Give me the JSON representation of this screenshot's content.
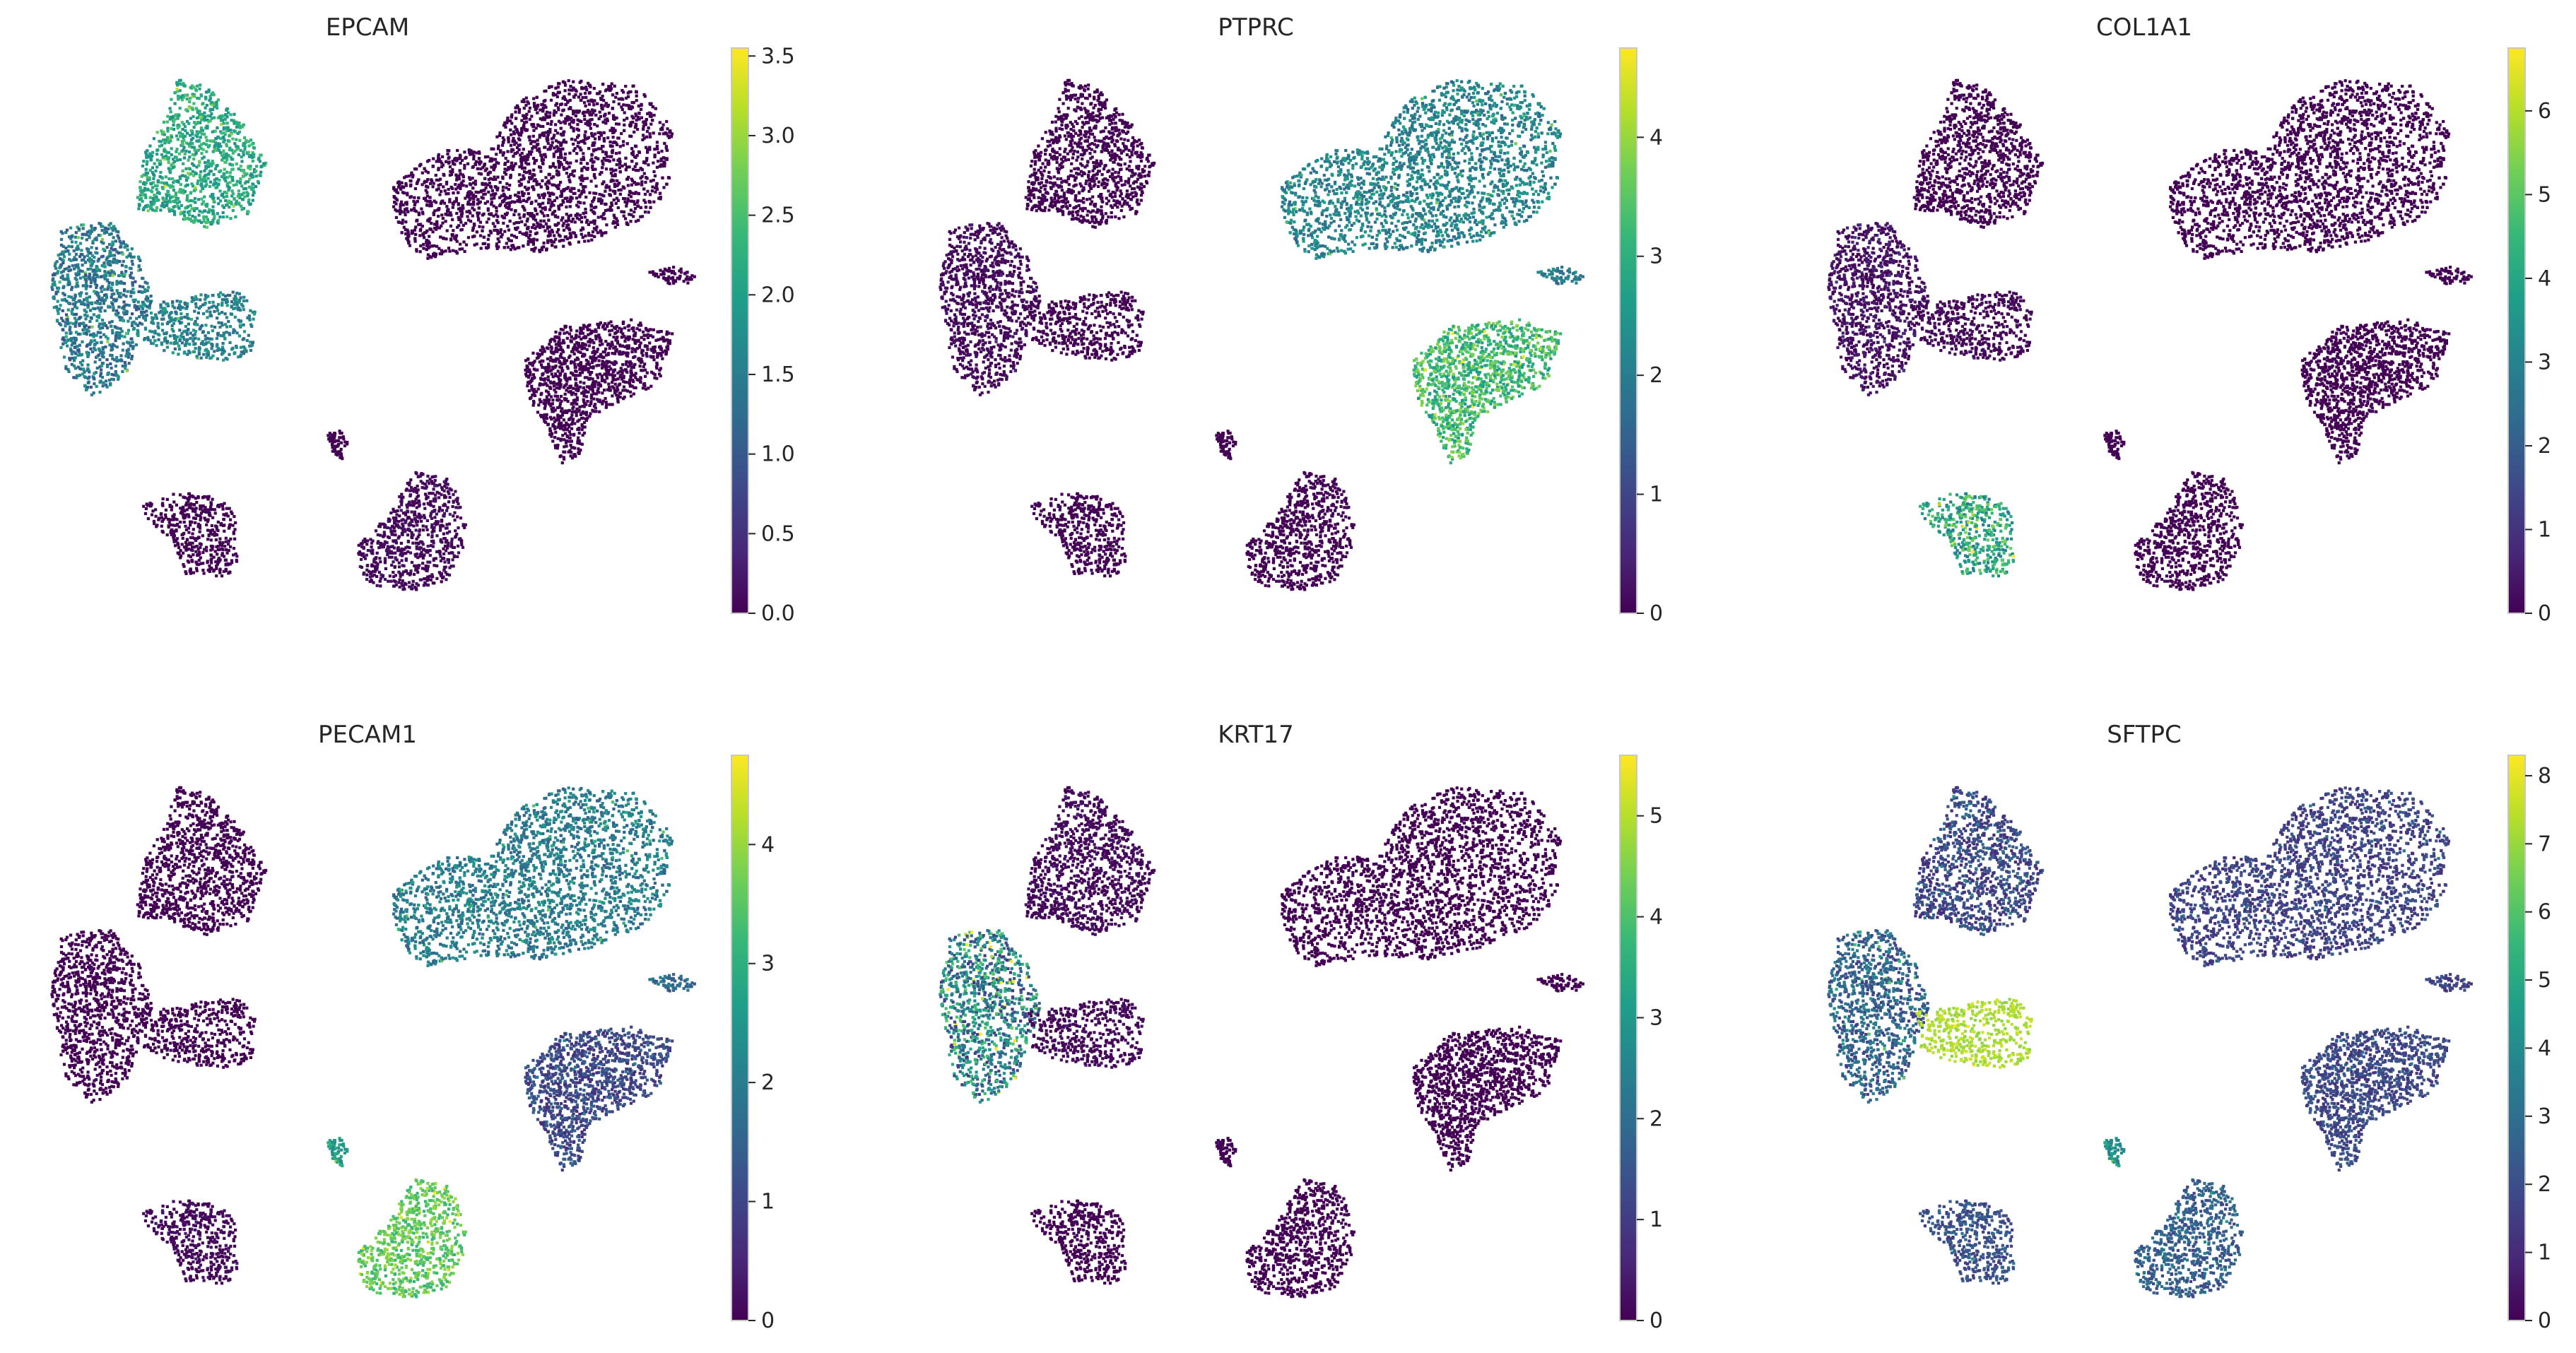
{
  "figure": {
    "type": "umap-feature-plot-grid"
  },
  "colormap": {
    "name": "viridis",
    "stops": [
      "#440154",
      "#482878",
      "#3e4989",
      "#31688e",
      "#26828e",
      "#1f9e89",
      "#35b779",
      "#6ece58",
      "#b5de2b",
      "#fde725"
    ]
  },
  "islands": [
    {
      "id": "upper-left-wedge"
    },
    {
      "id": "left-arm"
    },
    {
      "id": "left-tail"
    },
    {
      "id": "upper-right-large"
    },
    {
      "id": "right-protrusion"
    },
    {
      "id": "mid-right"
    },
    {
      "id": "tiny-left"
    },
    {
      "id": "lower-left-small"
    },
    {
      "id": "lower-center"
    }
  ],
  "chart_data": [
    {
      "type": "scatter",
      "title": "EPCAM",
      "xlabel": "",
      "ylabel": "",
      "colorbar": {
        "min": 0.0,
        "max": 3.55,
        "ticks": [
          "0.0",
          "0.5",
          "1.0",
          "1.5",
          "2.0",
          "2.5",
          "3.0",
          "3.5"
        ],
        "tick_values": [
          0,
          0.5,
          1,
          1.5,
          2,
          2.5,
          3,
          3.5
        ]
      },
      "island_levels": [
        0.6,
        0.4,
        0.45,
        0.0,
        0.0,
        0.0,
        0.0,
        0.0,
        0.02
      ],
      "island_spread": [
        0.12,
        0.15,
        0.12,
        0.01,
        0.01,
        0.01,
        0.01,
        0.01,
        0.03
      ]
    },
    {
      "type": "scatter",
      "title": "PTPRC",
      "xlabel": "",
      "ylabel": "",
      "colorbar": {
        "min": 0,
        "max": 4.75,
        "ticks": [
          "0",
          "1",
          "2",
          "3",
          "4"
        ],
        "tick_values": [
          0,
          1,
          2,
          3,
          4
        ]
      },
      "island_levels": [
        0.0,
        0.02,
        0.0,
        0.45,
        0.42,
        0.68,
        0.0,
        0.0,
        0.0
      ],
      "island_spread": [
        0.01,
        0.03,
        0.01,
        0.12,
        0.1,
        0.15,
        0.01,
        0.01,
        0.01
      ]
    },
    {
      "type": "scatter",
      "title": "COL1A1",
      "xlabel": "",
      "ylabel": "",
      "colorbar": {
        "min": 0,
        "max": 6.75,
        "ticks": [
          "0",
          "1",
          "2",
          "3",
          "4",
          "5",
          "6"
        ],
        "tick_values": [
          0,
          1,
          2,
          3,
          4,
          5,
          6
        ]
      },
      "island_levels": [
        0.0,
        0.04,
        0.02,
        0.0,
        0.0,
        0.0,
        0.0,
        0.6,
        0.0
      ],
      "island_spread": [
        0.01,
        0.05,
        0.03,
        0.01,
        0.01,
        0.01,
        0.01,
        0.2,
        0.01
      ]
    },
    {
      "type": "scatter",
      "title": "PECAM1",
      "xlabel": "",
      "ylabel": "",
      "colorbar": {
        "min": 0,
        "max": 4.75,
        "ticks": [
          "0",
          "1",
          "2",
          "3",
          "4"
        ],
        "tick_values": [
          0,
          1,
          2,
          3,
          4
        ]
      },
      "island_levels": [
        0.0,
        0.0,
        0.0,
        0.42,
        0.35,
        0.22,
        0.55,
        0.02,
        0.75
      ],
      "island_spread": [
        0.01,
        0.01,
        0.01,
        0.12,
        0.1,
        0.1,
        0.1,
        0.03,
        0.1
      ]
    },
    {
      "type": "scatter",
      "title": "KRT17",
      "xlabel": "",
      "ylabel": "",
      "colorbar": {
        "min": 0,
        "max": 5.6,
        "ticks": [
          "0",
          "1",
          "2",
          "3",
          "4",
          "5"
        ],
        "tick_values": [
          0,
          1,
          2,
          3,
          4,
          5
        ]
      },
      "island_levels": [
        0.02,
        0.45,
        0.02,
        0.0,
        0.0,
        0.0,
        0.0,
        0.0,
        0.0
      ],
      "island_spread": [
        0.03,
        0.3,
        0.03,
        0.01,
        0.01,
        0.01,
        0.01,
        0.01,
        0.01
      ]
    },
    {
      "type": "scatter",
      "title": "SFTPC",
      "xlabel": "",
      "ylabel": "",
      "colorbar": {
        "min": 0,
        "max": 8.3,
        "ticks": [
          "0",
          "1",
          "2",
          "3",
          "4",
          "5",
          "6",
          "7",
          "8"
        ],
        "tick_values": [
          0,
          1,
          2,
          3,
          4,
          5,
          6,
          7,
          8
        ]
      },
      "island_levels": [
        0.22,
        0.32,
        0.88,
        0.2,
        0.2,
        0.22,
        0.5,
        0.25,
        0.3
      ],
      "island_spread": [
        0.12,
        0.15,
        0.06,
        0.08,
        0.08,
        0.08,
        0.1,
        0.08,
        0.1
      ]
    }
  ]
}
